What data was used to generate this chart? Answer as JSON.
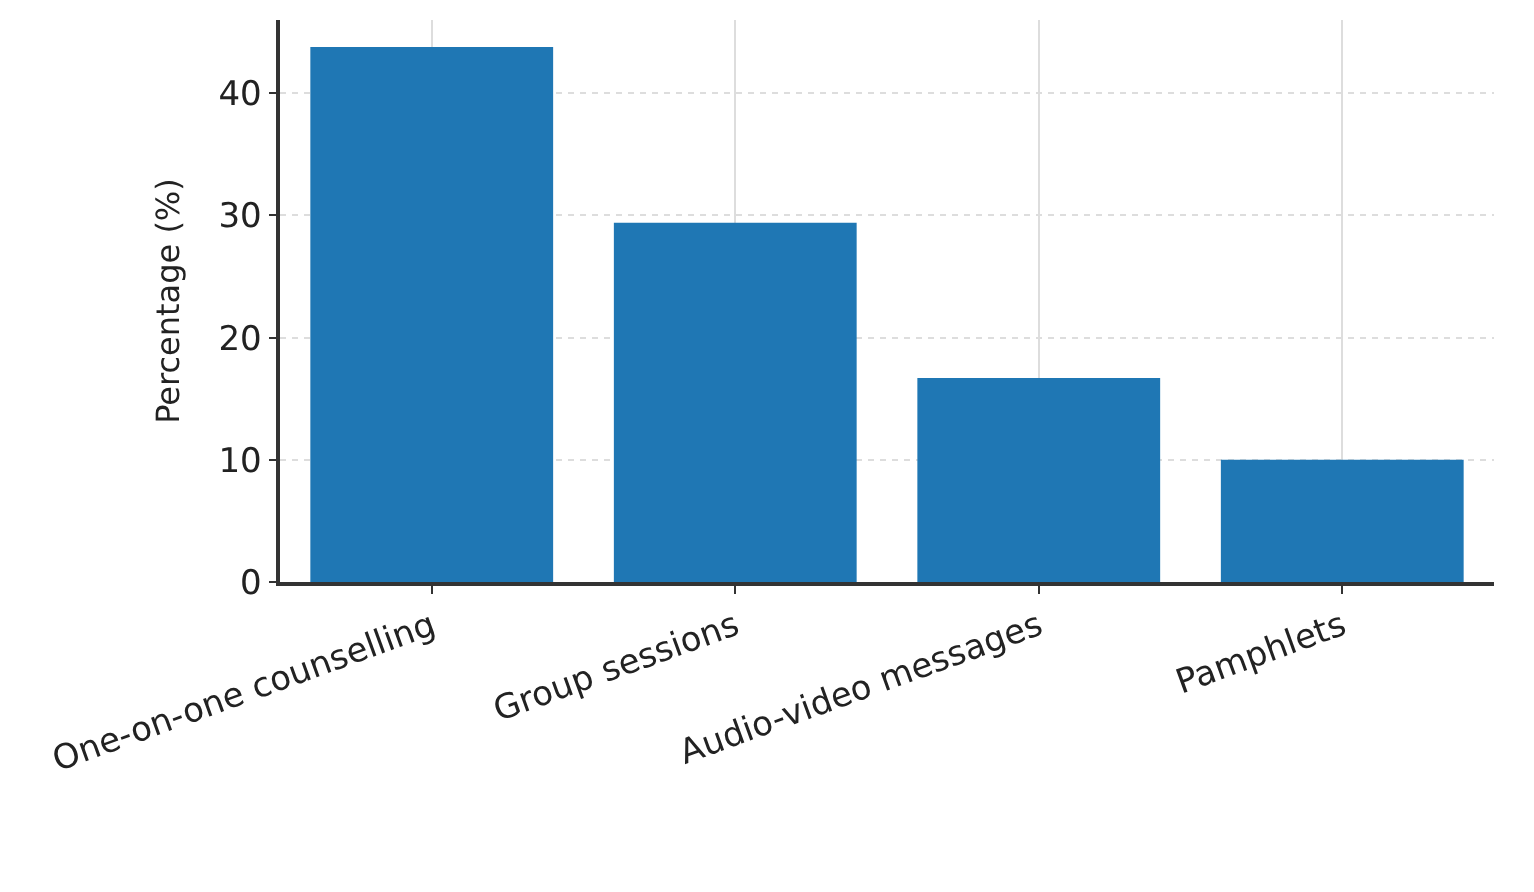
{
  "chart_data": {
    "type": "bar",
    "ylabel": "Percentage (%)",
    "categories": [
      "One-on-one counselling",
      "Group sessions",
      "Audio-video messages",
      "Pamphlets"
    ],
    "values": [
      43.8,
      29.4,
      16.7,
      10.0
    ],
    "color": "#1f77b4",
    "ylim": [
      0,
      46
    ],
    "yticks": [
      0,
      10,
      20,
      30,
      40
    ],
    "grid": true
  }
}
